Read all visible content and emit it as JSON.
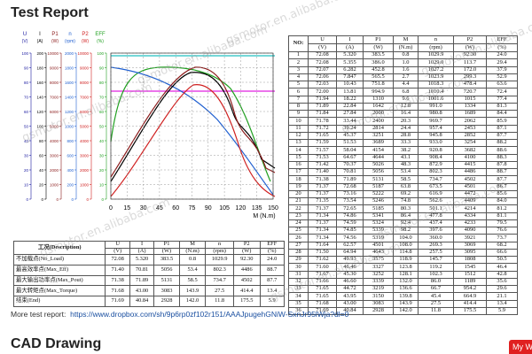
{
  "header": {
    "title": "Test Report"
  },
  "watermark": "gsmotor.en.alibaba.com",
  "chart": {
    "x_label": "M (N.m)",
    "xticks": [
      0,
      15,
      30,
      45,
      60,
      75,
      90,
      105,
      120,
      135,
      150
    ],
    "y_axes": [
      {
        "name": "U",
        "unit": "(V)",
        "color": "#1a1aa0",
        "ticks": [
          100,
          90,
          80,
          70,
          60,
          50,
          40,
          30,
          20,
          10,
          0
        ]
      },
      {
        "name": "I",
        "unit": "(A)",
        "color": "#000000",
        "ticks": [
          200,
          180,
          160,
          140,
          120,
          100,
          80,
          60,
          40,
          20,
          0
        ]
      },
      {
        "name": "P1",
        "unit": "(W)",
        "color": "#8b1a1a",
        "ticks": [
          10000,
          9000,
          8000,
          7000,
          6000,
          5000,
          4000,
          3000,
          2000,
          1000,
          0
        ]
      },
      {
        "name": "n",
        "unit": "(rpm)",
        "color": "#1f5fd0",
        "ticks": [
          2000,
          1800,
          1600,
          1400,
          1200,
          1000,
          800,
          600,
          400,
          200,
          0
        ]
      },
      {
        "name": "P2",
        "unit": "(W)",
        "color": "#d02020",
        "ticks": [
          10000,
          9000,
          8000,
          7000,
          6000,
          5000,
          4000,
          3000,
          2000,
          1000,
          0
        ]
      },
      {
        "name": "EFF",
        "unit": "(%)",
        "color": "#20a020",
        "ticks": [
          100,
          90,
          80,
          70,
          60,
          50,
          40,
          30,
          20,
          10,
          0
        ]
      }
    ]
  },
  "summary_table": {
    "columns": [
      {
        "name": "工况(Description)"
      },
      {
        "name": "U",
        "unit": "(V)"
      },
      {
        "name": "I",
        "unit": "(A)"
      },
      {
        "name": "P1",
        "unit": "(W)"
      },
      {
        "name": "M",
        "unit": "(N.m)"
      },
      {
        "name": "n",
        "unit": "(rpm)"
      },
      {
        "name": "P2",
        "unit": "(W)"
      },
      {
        "name": "EFF",
        "unit": "(%)"
      }
    ],
    "rows": [
      [
        "不加载点(No_Load)",
        "72.08",
        "5.320",
        "383.5",
        "0.8",
        "1029.9",
        "92.30",
        "24.0"
      ],
      [
        "最高效率点(Max_Eff)",
        "71.40",
        "70.81",
        "5056",
        "53.4",
        "802.3",
        "4486",
        "88.7"
      ],
      [
        "最大输出功率点(Max_Pout)",
        "71.38",
        "71.89",
        "5131",
        "58.5",
        "734.7",
        "4502",
        "87.7"
      ],
      [
        "最大转矩点(Max_Torque)",
        "71.68",
        "43.00",
        "3083",
        "143.9",
        "27.5",
        "414.4",
        "13.4"
      ],
      [
        "结束(End)",
        "71.69",
        "40.84",
        "2928",
        "142.0",
        "11.8",
        "175.5",
        "5.9"
      ]
    ]
  },
  "data_table": {
    "columns": [
      {
        "name": "NO:"
      },
      {
        "name": "U",
        "unit": "(V)"
      },
      {
        "name": "I",
        "unit": "(A)"
      },
      {
        "name": "P1",
        "unit": "(W)"
      },
      {
        "name": "M",
        "unit": "(N.m)"
      },
      {
        "name": "n",
        "unit": "(rpm)"
      },
      {
        "name": "P2",
        "unit": "(W)"
      },
      {
        "name": "EFF",
        "unit": "(%)"
      }
    ],
    "rows": [
      [
        "1",
        "72.08",
        "5.320",
        "383.5",
        "0.8",
        "1029.9",
        "92.30",
        "24.0"
      ],
      [
        "2",
        "72.08",
        "5.355",
        "386.0",
        "1.0",
        "1029.0",
        "113.7",
        "29.4"
      ],
      [
        "3",
        "72.07",
        "6.282",
        "452.8",
        "1.6",
        "1027.2",
        "172.0",
        "37.9"
      ],
      [
        "4",
        "72.06",
        "7.847",
        "565.5",
        "2.7",
        "1023.9",
        "299.3",
        "52.9"
      ],
      [
        "5",
        "72.03",
        "10.43",
        "751.8",
        "4.4",
        "1018.3",
        "478.4",
        "63.6"
      ],
      [
        "6",
        "72.00",
        "13.81",
        "994.9",
        "6.8",
        "1010.4",
        "720.7",
        "72.4"
      ],
      [
        "7",
        "71.94",
        "18.22",
        "1310",
        "9.6",
        "1001.6",
        "1015",
        "77.4"
      ],
      [
        "8",
        "71.89",
        "22.84",
        "1642",
        "12.8",
        "991.0",
        "1334",
        "81.3"
      ],
      [
        "9",
        "71.84",
        "27.84",
        "2000",
        "16.4",
        "980.8",
        "1689",
        "84.4"
      ],
      [
        "10",
        "71.78",
        "33.44",
        "2400",
        "20.3",
        "969.7",
        "2062",
        "85.9"
      ],
      [
        "11",
        "71.72",
        "39.24",
        "2814",
        "24.4",
        "957.4",
        "2453",
        "87.1"
      ],
      [
        "12",
        "71.65",
        "45.37",
        "3251",
        "28.8",
        "945.8",
        "2852",
        "87.7"
      ],
      [
        "13",
        "71.59",
        "51.53",
        "3689",
        "33.3",
        "933.0",
        "3254",
        "88.2"
      ],
      [
        "14",
        "71.57",
        "58.04",
        "4154",
        "38.2",
        "920.8",
        "3682",
        "88.6"
      ],
      [
        "15",
        "71.53",
        "64.67",
        "4644",
        "43.1",
        "908.4",
        "4100",
        "88.3"
      ],
      [
        "16",
        "71.42",
        "70.37",
        "5026",
        "48.3",
        "872.9",
        "4415",
        "87.8"
      ],
      [
        "17",
        "71.40",
        "70.81",
        "5056",
        "53.4",
        "802.3",
        "4486",
        "88.7"
      ],
      [
        "18",
        "71.38",
        "71.89",
        "5131",
        "58.5",
        "734.7",
        "4502",
        "87.7"
      ],
      [
        "19",
        "71.37",
        "72.68",
        "5187",
        "63.8",
        "673.5",
        "4501",
        "86.7"
      ],
      [
        "20",
        "71.37",
        "73.16",
        "5222",
        "69.2",
        "616.9",
        "4472",
        "85.6"
      ],
      [
        "21",
        "71.35",
        "73.54",
        "5246",
        "74.8",
        "562.6",
        "4409",
        "84.0"
      ],
      [
        "22",
        "71.37",
        "72.65",
        "5185",
        "80.3",
        "501.1",
        "4214",
        "81.2"
      ],
      [
        "23",
        "71.34",
        "74.86",
        "5341",
        "86.4",
        "477.8",
        "4334",
        "81.1"
      ],
      [
        "24",
        "71.37",
        "74.59",
        "5324",
        "92.4",
        "437.4",
        "4233",
        "79.5"
      ],
      [
        "25",
        "71.34",
        "74.85",
        "5339",
        "98.2",
        "397.6",
        "4090",
        "76.6"
      ],
      [
        "26",
        "71.34",
        "74.56",
        "5319",
        "104.0",
        "360.0",
        "3921",
        "73.7"
      ],
      [
        "27",
        "71.64",
        "62.57",
        "4501",
        "108.0",
        "269.3",
        "3069",
        "68.2"
      ],
      [
        "28",
        "71.50",
        "64.94",
        "4643",
        "114.8",
        "257.5",
        "3095",
        "66.6"
      ],
      [
        "29",
        "71.62",
        "49.93",
        "3575",
        "118.9",
        "145.7",
        "1808",
        "50.5"
      ],
      [
        "30",
        "71.60",
        "46.46",
        "3327",
        "123.8",
        "119.2",
        "1545",
        "46.4"
      ],
      [
        "31",
        "71.67",
        "45.30",
        "3252",
        "128.1",
        "102.3",
        "1512",
        "42.8"
      ],
      [
        "32",
        "71.66",
        "46.60",
        "3339",
        "132.0",
        "86.0",
        "1189",
        "35.6"
      ],
      [
        "33",
        "71.65",
        "44.72",
        "3219",
        "136.6",
        "66.7",
        "954.2",
        "29.6"
      ],
      [
        "34",
        "71.65",
        "43.95",
        "3150",
        "139.8",
        "45.4",
        "664.9",
        "21.1"
      ],
      [
        "35",
        "71.68",
        "43.00",
        "3083",
        "143.9",
        "27.5",
        "414.4",
        "13.4"
      ],
      [
        "36",
        "71.69",
        "40.84",
        "2928",
        "142.0",
        "11.8",
        "175.5",
        "5.9"
      ]
    ]
  },
  "footer": {
    "more_label": "More test report:",
    "link": "https://www.dropbox.com/sh/9p6rp0zf102r151/AAAJpugehGNiW-SxnJr95lWja?dl=0"
  },
  "section2": {
    "title": "CAD Drawing"
  },
  "button": "My W"
}
